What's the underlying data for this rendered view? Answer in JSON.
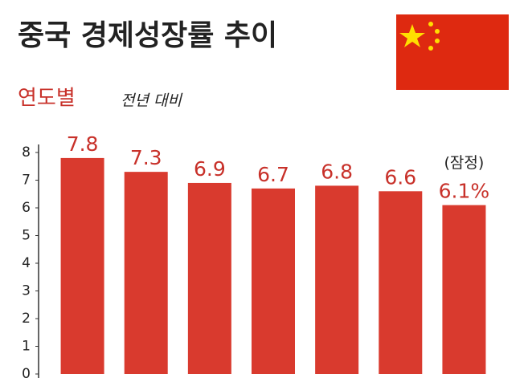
{
  "chart_data": {
    "type": "bar",
    "title": "중국 경제성장률 추이",
    "subtitle": "연도별",
    "unit_note": "전년 대비",
    "annotation": "(잠정)",
    "categories": [
      null,
      null,
      null,
      null,
      null,
      null,
      null
    ],
    "values": [
      7.8,
      7.3,
      6.9,
      6.7,
      6.8,
      6.6,
      6.1
    ],
    "value_labels": [
      "7.8",
      "7.3",
      "6.9",
      "6.7",
      "6.8",
      "6.6",
      "6.1%"
    ],
    "color": "#d93a2e",
    "ylim": [
      0,
      8
    ],
    "yticks": [
      0,
      1,
      2,
      3,
      4,
      5,
      6,
      7,
      8
    ]
  }
}
